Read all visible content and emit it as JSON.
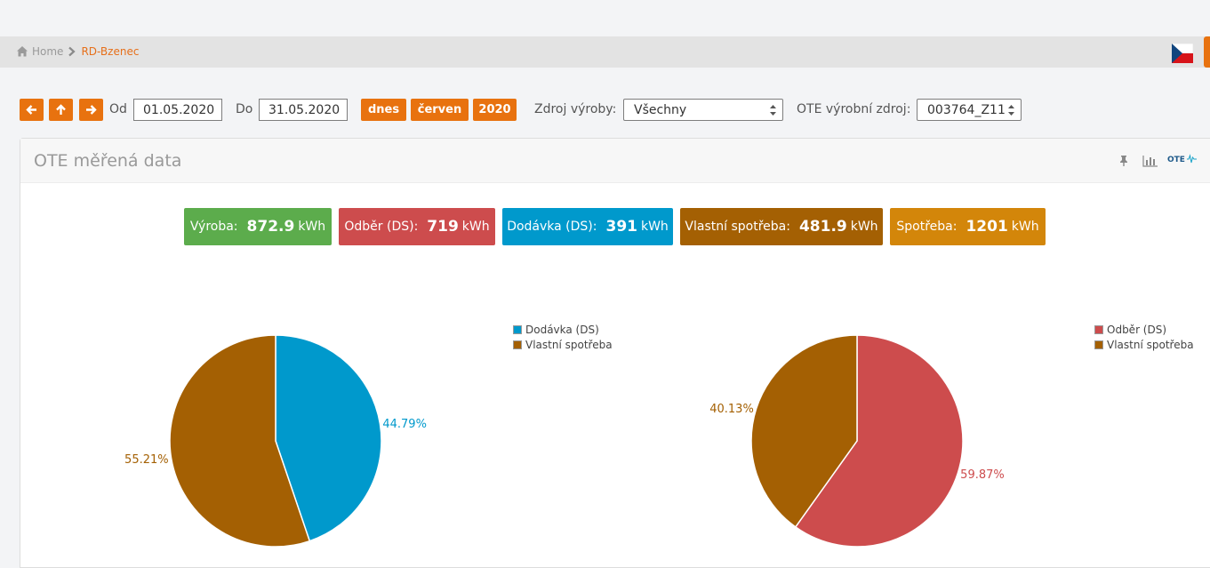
{
  "breadcrumb": {
    "home": "Home",
    "current": "RD-Bzenec"
  },
  "toolbar": {
    "od_label": "Od",
    "od_value": "01.05.2020",
    "do_label": "Do",
    "do_value": "31.05.2020",
    "btn_today": "dnes",
    "btn_month": "červen",
    "btn_year": "2020",
    "zdroj_label": "Zdroj výroby:",
    "zdroj_value": "Všechny",
    "ote_label": "OTE výrobní zdroj:",
    "ote_value": "003764_Z11"
  },
  "panel": {
    "title": "OTE měřená data"
  },
  "stats": [
    {
      "label": "Výroba:",
      "value": "872.9",
      "unit": "kWh",
      "color": "#5cac4c"
    },
    {
      "label": "Odběr (DS):",
      "value": "719",
      "unit": "kWh",
      "color": "#cd4c4d"
    },
    {
      "label": "Dodávka (DS):",
      "value": "391",
      "unit": "kWh",
      "color": "#0099cc"
    },
    {
      "label": "Vlastní spotřeba:",
      "value": "481.9",
      "unit": "kWh",
      "color": "#a46003"
    },
    {
      "label": "Spotřeba:",
      "value": "1201",
      "unit": "kWh",
      "color": "#d3860a"
    }
  ],
  "chart_data": [
    {
      "type": "pie",
      "categories": [
        "Dodávka (DS)",
        "Vlastní spotřeba"
      ],
      "values": [
        44.79,
        55.21
      ],
      "labels": [
        "44.79%",
        "55.21%"
      ],
      "colors": [
        "#0099cc",
        "#a46003"
      ],
      "legend": "top-right"
    },
    {
      "type": "pie",
      "categories": [
        "Odběr (DS)",
        "Vlastní spotřeba"
      ],
      "values": [
        59.87,
        40.13
      ],
      "labels": [
        "59.87%",
        "40.13%"
      ],
      "colors": [
        "#cd4c4d",
        "#a46003"
      ],
      "legend": "top-right"
    }
  ],
  "icons": {
    "home": "home-icon",
    "chevron": "chevron-right-icon",
    "flag": "czech-flag-icon",
    "pin": "pin-icon",
    "chart": "bar-chart-icon",
    "ote": "ote-logo-icon"
  }
}
